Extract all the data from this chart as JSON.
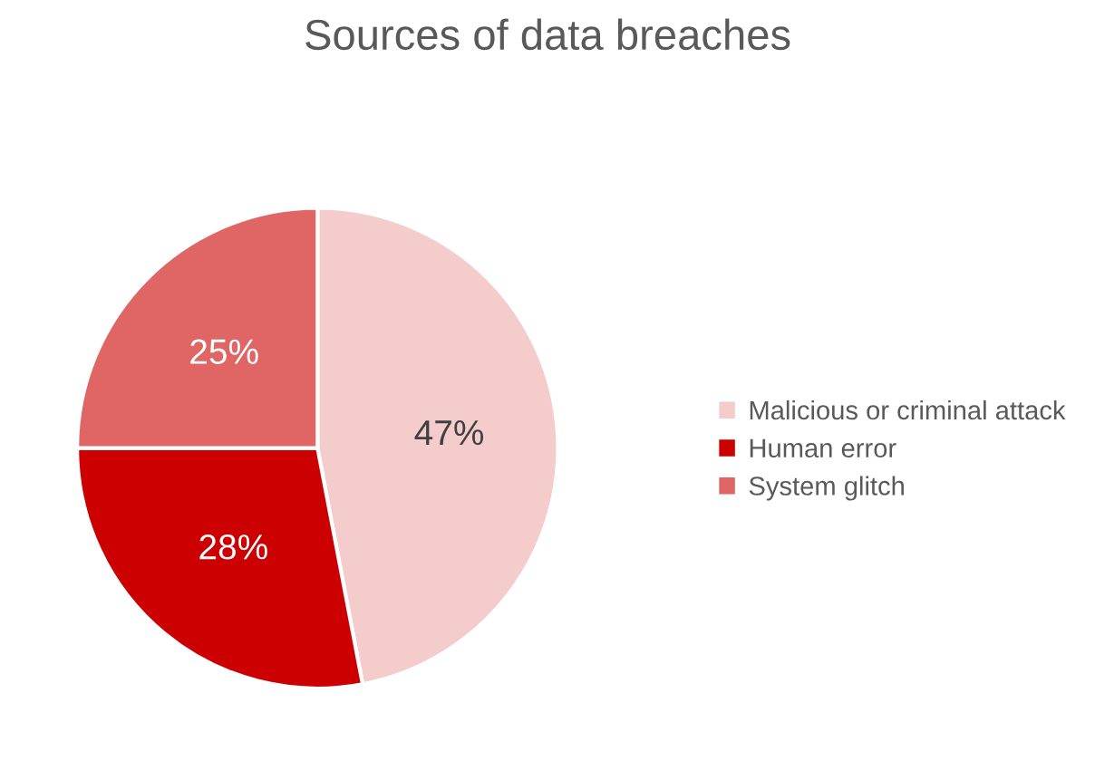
{
  "chart_data": {
    "type": "pie",
    "title": "Sources of data breaches",
    "categories": [
      "Malicious or criminal attack",
      "Human error",
      "System glitch"
    ],
    "values": [
      47,
      28,
      25
    ],
    "colors": [
      "#f4cccc",
      "#cc0000",
      "#e06666"
    ],
    "value_labels": [
      "47%",
      "28%",
      "25%"
    ],
    "legend": "right"
  }
}
